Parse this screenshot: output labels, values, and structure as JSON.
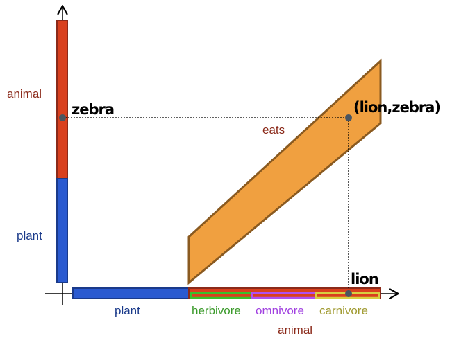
{
  "y_axis": {
    "upper_label": "animal",
    "lower_label": "plant",
    "point_label": "zebra"
  },
  "x_axis": {
    "left_label": "plant",
    "sub_labels": [
      "herbivore",
      "omnivore",
      "carnivore"
    ],
    "right_label": "animal",
    "point_label": "lion"
  },
  "relation": {
    "label": "eats",
    "point_label": "(lion,zebra)"
  }
}
